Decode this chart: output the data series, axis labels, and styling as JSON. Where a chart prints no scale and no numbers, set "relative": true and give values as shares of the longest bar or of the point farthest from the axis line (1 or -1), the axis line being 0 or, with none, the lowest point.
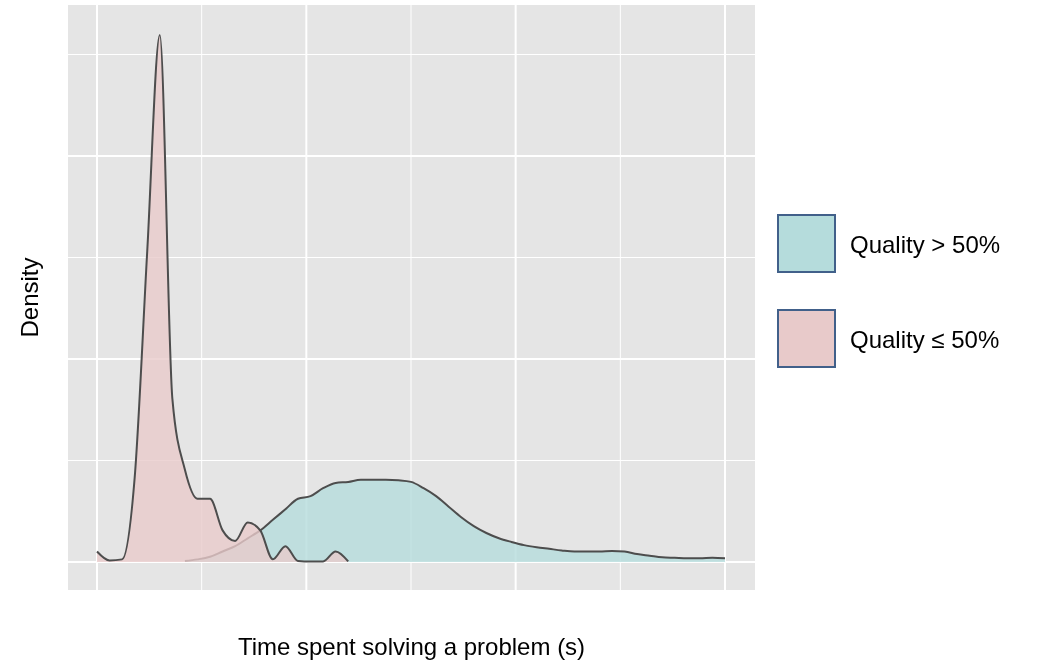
{
  "chart_data": {
    "type": "area",
    "relative": true,
    "xlabel": "Time spent solving a problem (s)",
    "ylabel": "Density",
    "categories": [
      null,
      null,
      null,
      null,
      null,
      null,
      null,
      null,
      null,
      null,
      null,
      null,
      null,
      null,
      null,
      null,
      null,
      null,
      null,
      null,
      null,
      null,
      null,
      null,
      null,
      null,
      null,
      null,
      null,
      null,
      null,
      null,
      null,
      null,
      null,
      null,
      null,
      null,
      null,
      null,
      null,
      null,
      null,
      null,
      null,
      null,
      null,
      null,
      null,
      null,
      null
    ],
    "series": [
      {
        "name": "Quality > 50%",
        "color": "#b5dcdc",
        "values": [
          null,
          null,
          null,
          null,
          null,
          null,
          null,
          0.002,
          0.005,
          0.01,
          0.02,
          0.03,
          0.045,
          0.06,
          0.08,
          0.1,
          0.12,
          0.125,
          0.14,
          0.15,
          0.152,
          0.156,
          0.156,
          0.156,
          0.155,
          0.152,
          0.14,
          0.125,
          0.105,
          0.085,
          0.068,
          0.055,
          0.045,
          0.038,
          0.032,
          0.028,
          0.025,
          0.022,
          0.02,
          0.02,
          0.02,
          0.021,
          0.02,
          0.015,
          0.012,
          0.009,
          0.008,
          0.007,
          0.007,
          0.008,
          0.007
        ]
      },
      {
        "name": "Quality ≤ 50%",
        "color": "#e8caca",
        "values": [
          0.02,
          0.003,
          0.005,
          0.16,
          0.59,
          1,
          0.31,
          0.175,
          0.12,
          0.12,
          0.06,
          0.04,
          0.075,
          0.06,
          0.005,
          0.03,
          0.002,
          0.001,
          0.001,
          0.02,
          0.001,
          null,
          null,
          null,
          null,
          null,
          null,
          null,
          null,
          null,
          null,
          null,
          null,
          null,
          null,
          null,
          null,
          null,
          null,
          null,
          null,
          null,
          null,
          null,
          null,
          null,
          null,
          null,
          null,
          null,
          null
        ]
      }
    ],
    "grid": true,
    "legend": "right"
  }
}
